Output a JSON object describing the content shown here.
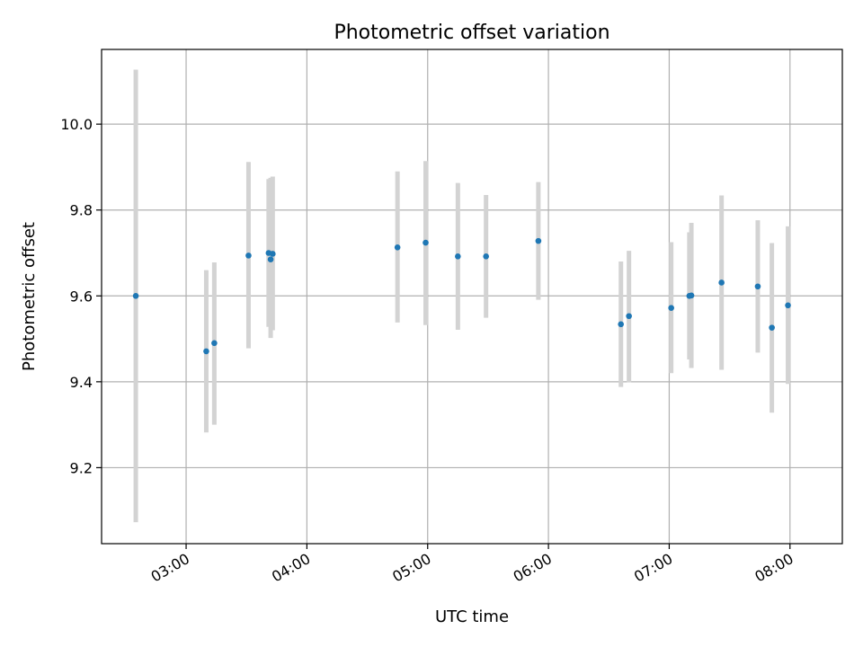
{
  "chart_data": {
    "type": "scatter",
    "title": "Photometric offset variation",
    "xlabel": "UTC time",
    "ylabel": "Photometric offset",
    "x_range": [
      "02:18",
      "08:26"
    ],
    "ylim": [
      9.023,
      10.174
    ],
    "grid": true,
    "x_ticks": [
      "03:00",
      "04:00",
      "05:00",
      "06:00",
      "07:00",
      "08:00"
    ],
    "y_ticks": [
      9.2,
      9.4,
      9.6,
      9.8,
      10.0
    ],
    "y_tick_labels": [
      "9.2",
      "9.4",
      "9.6",
      "9.8",
      "10.0"
    ],
    "colors": {
      "point": "#1f77b4",
      "errorbar": "#d3d3d3",
      "grid": "#b0b0b0"
    },
    "points": [
      {
        "x": "02:35",
        "y": 9.6,
        "ylow": 9.073,
        "yhigh": 10.127
      },
      {
        "x": "03:10",
        "y": 9.471,
        "ylow": 9.282,
        "yhigh": 9.66
      },
      {
        "x": "03:14",
        "y": 9.49,
        "ylow": 9.3,
        "yhigh": 9.678
      },
      {
        "x": "03:31",
        "y": 9.694,
        "ylow": 9.478,
        "yhigh": 9.912
      },
      {
        "x": "03:41",
        "y": 9.7,
        "ylow": 9.528,
        "yhigh": 9.872
      },
      {
        "x": "03:42",
        "y": 9.685,
        "ylow": 9.502,
        "yhigh": 9.875
      },
      {
        "x": "03:43",
        "y": 9.698,
        "ylow": 9.52,
        "yhigh": 9.878
      },
      {
        "x": "04:45",
        "y": 9.713,
        "ylow": 9.538,
        "yhigh": 9.89
      },
      {
        "x": "04:59",
        "y": 9.724,
        "ylow": 9.532,
        "yhigh": 9.914
      },
      {
        "x": "05:15",
        "y": 9.692,
        "ylow": 9.521,
        "yhigh": 9.863
      },
      {
        "x": "05:29",
        "y": 9.692,
        "ylow": 9.549,
        "yhigh": 9.835
      },
      {
        "x": "05:55",
        "y": 9.728,
        "ylow": 9.591,
        "yhigh": 9.865
      },
      {
        "x": "06:36",
        "y": 9.534,
        "ylow": 9.388,
        "yhigh": 9.68
      },
      {
        "x": "06:40",
        "y": 9.553,
        "ylow": 9.399,
        "yhigh": 9.705
      },
      {
        "x": "07:01",
        "y": 9.572,
        "ylow": 9.42,
        "yhigh": 9.725
      },
      {
        "x": "07:10",
        "y": 9.6,
        "ylow": 9.452,
        "yhigh": 9.748
      },
      {
        "x": "07:11",
        "y": 9.601,
        "ylow": 9.432,
        "yhigh": 9.77
      },
      {
        "x": "07:26",
        "y": 9.631,
        "ylow": 9.428,
        "yhigh": 9.834
      },
      {
        "x": "07:44",
        "y": 9.622,
        "ylow": 9.468,
        "yhigh": 9.776
      },
      {
        "x": "07:51",
        "y": 9.526,
        "ylow": 9.328,
        "yhigh": 9.723
      },
      {
        "x": "07:59",
        "y": 9.578,
        "ylow": 9.395,
        "yhigh": 9.762
      }
    ]
  }
}
